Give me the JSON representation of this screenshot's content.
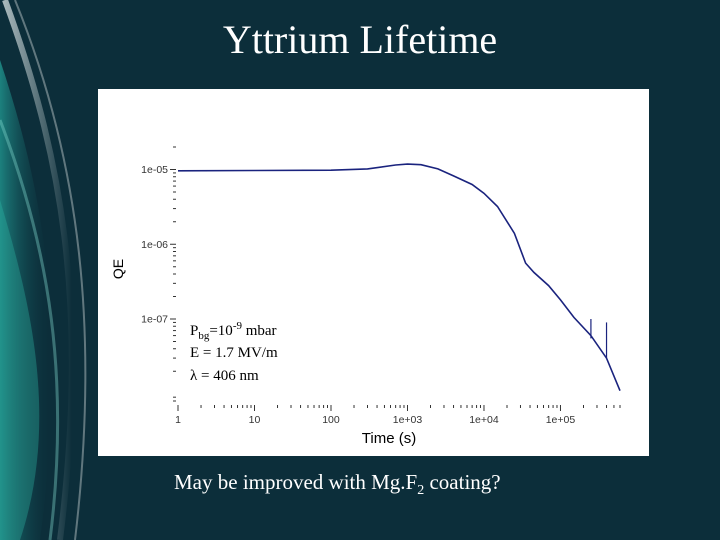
{
  "slide": {
    "title": "Yttrium Lifetime",
    "caption": {
      "before": "May be improved with Mg.F",
      "sub": "2",
      "after": " coating?"
    }
  },
  "colors": {
    "background": "#0c2e3a",
    "accent": "#2fb6a6",
    "series": "#1a237e",
    "panel": "#ffffff"
  },
  "chart_data": {
    "type": "line",
    "xlabel": "Time (s)",
    "ylabel": "QE",
    "xscale": "log",
    "yscale": "log",
    "xlim": [
      1,
      600000
    ],
    "ylim": [
      8e-09,
      2e-05
    ],
    "xticks": [
      {
        "v": 1,
        "label": "1"
      },
      {
        "v": 10,
        "label": "10"
      },
      {
        "v": 100,
        "label": "100"
      },
      {
        "v": 1000,
        "label": "1e+03"
      },
      {
        "v": 10000,
        "label": "1e+04"
      },
      {
        "v": 100000,
        "label": "1e+05"
      }
    ],
    "yticks": [
      {
        "v": 1e-05,
        "label": "1e-05"
      },
      {
        "v": 1e-06,
        "label": "1e-06"
      },
      {
        "v": 1e-07,
        "label": "1e-07"
      }
    ],
    "grid": false,
    "annotations": [
      {
        "parts": [
          "P",
          "bg",
          "=10",
          "-9",
          " mbar"
        ]
      },
      {
        "text": "E = 1.7 MV/m"
      },
      {
        "text": "λ = 406 nm"
      }
    ],
    "series": [
      {
        "x": [
          1,
          10,
          100,
          300,
          700,
          1000,
          1500,
          2500,
          4000,
          7000,
          10000,
          15000,
          25000,
          35000,
          45000,
          70000,
          100000,
          150000,
          250000,
          400000,
          600000
        ],
        "y": [
          9.6e-06,
          9.7e-06,
          9.8e-06,
          1.02e-05,
          1.15e-05,
          1.18e-05,
          1.16e-05,
          1.02e-05,
          8.2e-06,
          6.3e-06,
          4.8e-06,
          3.2e-06,
          1.4e-06,
          5.6e-07,
          4.2e-07,
          2.8e-07,
          1.8e-07,
          1.05e-07,
          6e-08,
          3e-08,
          1.1e-08
        ]
      }
    ],
    "spikes": [
      {
        "x": 250000,
        "y0": 5.5e-08,
        "y1": 1e-07
      },
      {
        "x": 400000,
        "y0": 3e-08,
        "y1": 9e-08
      }
    ]
  }
}
